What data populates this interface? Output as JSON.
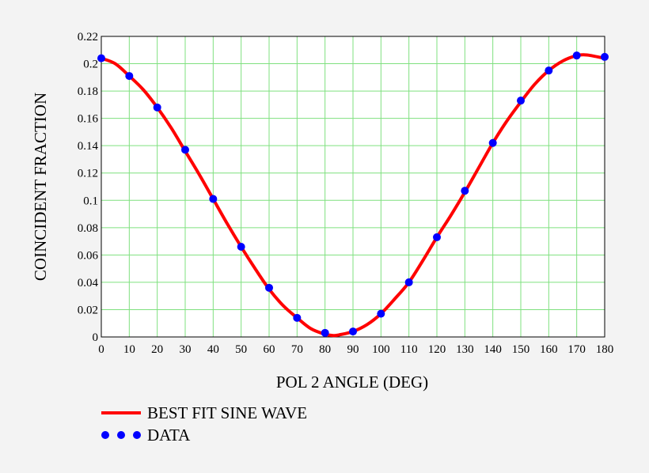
{
  "chart_data": {
    "type": "line",
    "xlabel": "POL 2 ANGLE (DEG)",
    "ylabel": "COINCIDENT FRACTION",
    "xlim": [
      0,
      180
    ],
    "ylim": [
      0,
      0.22
    ],
    "x_ticks": [
      "0",
      "10",
      "20",
      "30",
      "40",
      "50",
      "60",
      "70",
      "80",
      "90",
      "100",
      "110",
      "120",
      "130",
      "140",
      "150",
      "160",
      "170",
      "180"
    ],
    "y_ticks": [
      "0",
      "0.02",
      "0.04",
      "0.06",
      "0.08",
      "0.1",
      "0.12",
      "0.14",
      "0.16",
      "0.18",
      "0.2",
      "0.22"
    ],
    "grid": true,
    "grid_color": "#7fe07f",
    "legend_position": "bottom-left",
    "series": [
      {
        "name": "BEST FIT SINE WAVE",
        "kind": "line",
        "color": "#ff0000",
        "x": [
          0,
          5,
          10,
          15,
          20,
          25,
          30,
          35,
          40,
          45,
          50,
          55,
          60,
          65,
          70,
          75,
          80,
          83,
          85,
          90,
          95,
          100,
          105,
          110,
          115,
          120,
          125,
          130,
          135,
          140,
          145,
          150,
          155,
          160,
          165,
          170,
          173,
          175,
          180
        ],
        "y": [
          0.204,
          0.2,
          0.191,
          0.181,
          0.168,
          0.153,
          0.136,
          0.119,
          0.101,
          0.083,
          0.066,
          0.05,
          0.035,
          0.023,
          0.014,
          0.006,
          0.002,
          0.001,
          0.0015,
          0.004,
          0.009,
          0.017,
          0.028,
          0.04,
          0.056,
          0.073,
          0.089,
          0.106,
          0.124,
          0.142,
          0.158,
          0.172,
          0.185,
          0.195,
          0.202,
          0.206,
          0.2065,
          0.206,
          0.204
        ]
      },
      {
        "name": "DATA",
        "kind": "scatter",
        "color": "#0000ff",
        "x": [
          0,
          10,
          20,
          30,
          40,
          50,
          60,
          70,
          80,
          90,
          100,
          110,
          120,
          130,
          140,
          150,
          160,
          170,
          180
        ],
        "y": [
          0.204,
          0.191,
          0.168,
          0.137,
          0.101,
          0.066,
          0.036,
          0.014,
          0.003,
          0.004,
          0.017,
          0.04,
          0.073,
          0.107,
          0.142,
          0.173,
          0.195,
          0.206,
          0.205
        ]
      }
    ]
  }
}
